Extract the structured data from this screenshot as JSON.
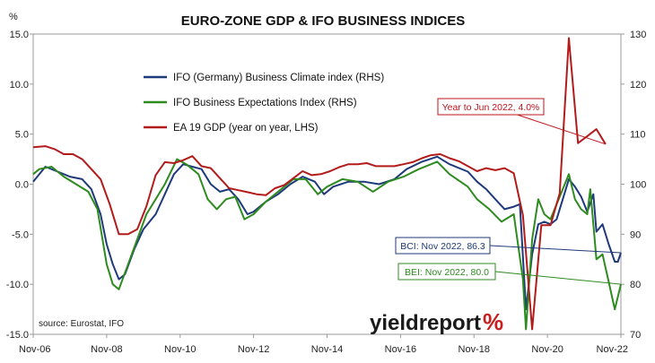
{
  "chart_data": {
    "type": "line",
    "title": "EURO-ZONE GDP & IFO BUSINESS INDICES",
    "source": "source: Eurostat, IFO",
    "brand": {
      "main": "yieldreport",
      "symbol": "%"
    },
    "x_labels": [
      "Nov-06",
      "Nov-08",
      "Nov-10",
      "Nov-12",
      "Nov-14",
      "Nov-16",
      "Nov-18",
      "Nov-20",
      "Nov-22"
    ],
    "xlim": [
      "2006-11",
      "2022-11"
    ],
    "y_left": {
      "label": "%",
      "ticks": [
        "15.0",
        "10.0",
        "5.0",
        "0.0",
        "-5.0",
        "-10.0",
        "-15.0"
      ],
      "range": [
        -15,
        15
      ]
    },
    "y_right": {
      "ticks": [
        "130",
        "120",
        "110",
        "100",
        "90",
        "80",
        "70"
      ],
      "range": [
        70,
        130
      ]
    },
    "grid": false,
    "legend_position": "top-left",
    "series": [
      {
        "name": "IFO (Germany) Business Climate index (RHS)",
        "axis": "right",
        "color": "#1f3a7a",
        "points": [
          [
            "2006-11",
            100.5
          ],
          [
            "2007-03",
            103.5
          ],
          [
            "2007-07",
            102.5
          ],
          [
            "2007-11",
            101.5
          ],
          [
            "2008-03",
            101
          ],
          [
            "2008-06",
            99
          ],
          [
            "2008-09",
            94
          ],
          [
            "2008-11",
            88
          ],
          [
            "2009-01",
            84
          ],
          [
            "2009-03",
            81
          ],
          [
            "2009-05",
            82
          ],
          [
            "2009-08",
            87
          ],
          [
            "2009-11",
            91
          ],
          [
            "2010-03",
            94
          ],
          [
            "2010-06",
            98
          ],
          [
            "2010-09",
            102
          ],
          [
            "2010-12",
            104
          ],
          [
            "2011-03",
            103.5
          ],
          [
            "2011-06",
            103
          ],
          [
            "2011-09",
            100
          ],
          [
            "2011-12",
            98.5
          ],
          [
            "2012-03",
            99
          ],
          [
            "2012-06",
            97
          ],
          [
            "2012-09",
            94
          ],
          [
            "2012-11",
            94.5
          ],
          [
            "2013-03",
            96.5
          ],
          [
            "2013-07",
            98
          ],
          [
            "2013-11",
            100
          ],
          [
            "2014-03",
            101.5
          ],
          [
            "2014-07",
            100.5
          ],
          [
            "2014-10",
            98
          ],
          [
            "2015-01",
            99.5
          ],
          [
            "2015-06",
            100.5
          ],
          [
            "2015-11",
            100.5
          ],
          [
            "2016-04",
            100
          ],
          [
            "2016-09",
            101
          ],
          [
            "2017-01",
            103
          ],
          [
            "2017-06",
            104.5
          ],
          [
            "2017-11",
            105.5
          ],
          [
            "2018-03",
            104
          ],
          [
            "2018-09",
            102.5
          ],
          [
            "2018-12",
            100.5
          ],
          [
            "2019-03",
            99
          ],
          [
            "2019-06",
            97
          ],
          [
            "2019-09",
            95
          ],
          [
            "2019-12",
            95.5
          ],
          [
            "2020-02",
            96
          ],
          [
            "2020-04",
            75
          ],
          [
            "2020-06",
            86
          ],
          [
            "2020-08",
            92
          ],
          [
            "2020-10",
            92.5
          ],
          [
            "2020-12",
            92
          ],
          [
            "2021-02",
            93
          ],
          [
            "2021-04",
            97
          ],
          [
            "2021-06",
            101
          ],
          [
            "2021-08",
            99.5
          ],
          [
            "2021-10",
            97.5
          ],
          [
            "2021-12",
            94.5
          ],
          [
            "2022-02",
            98
          ],
          [
            "2022-03",
            90.5
          ],
          [
            "2022-05",
            92
          ],
          [
            "2022-07",
            88
          ],
          [
            "2022-09",
            84.5
          ],
          [
            "2022-10",
            84.5
          ],
          [
            "2022-11",
            86.3
          ]
        ]
      },
      {
        "name": "IFO Business Expectations Index (RHS)",
        "axis": "right",
        "color": "#2e8b1f",
        "points": [
          [
            "2006-11",
            102
          ],
          [
            "2007-01",
            103
          ],
          [
            "2007-05",
            103.5
          ],
          [
            "2007-09",
            101.5
          ],
          [
            "2008-01",
            100
          ],
          [
            "2008-05",
            98.5
          ],
          [
            "2008-08",
            95
          ],
          [
            "2008-11",
            84
          ],
          [
            "2009-01",
            80
          ],
          [
            "2009-03",
            79
          ],
          [
            "2009-06",
            84
          ],
          [
            "2009-09",
            89
          ],
          [
            "2009-12",
            94
          ],
          [
            "2010-03",
            97
          ],
          [
            "2010-06",
            100
          ],
          [
            "2010-10",
            105
          ],
          [
            "2011-01",
            104
          ],
          [
            "2011-05",
            102
          ],
          [
            "2011-08",
            97
          ],
          [
            "2011-11",
            95
          ],
          [
            "2012-02",
            97
          ],
          [
            "2012-05",
            97.5
          ],
          [
            "2012-08",
            93
          ],
          [
            "2012-11",
            94
          ],
          [
            "2013-03",
            96.5
          ],
          [
            "2013-07",
            98.5
          ],
          [
            "2013-12",
            101
          ],
          [
            "2014-04",
            101
          ],
          [
            "2014-08",
            98
          ],
          [
            "2014-11",
            99.5
          ],
          [
            "2015-04",
            101
          ],
          [
            "2015-09",
            100.5
          ],
          [
            "2016-02",
            98.5
          ],
          [
            "2016-07",
            100.5
          ],
          [
            "2016-12",
            101.5
          ],
          [
            "2017-05",
            103
          ],
          [
            "2017-11",
            104.5
          ],
          [
            "2018-03",
            102
          ],
          [
            "2018-09",
            99.5
          ],
          [
            "2018-12",
            97
          ],
          [
            "2019-04",
            95
          ],
          [
            "2019-08",
            92.5
          ],
          [
            "2019-12",
            94
          ],
          [
            "2020-03",
            81
          ],
          [
            "2020-04",
            71
          ],
          [
            "2020-06",
            89
          ],
          [
            "2020-08",
            97
          ],
          [
            "2020-10",
            94
          ],
          [
            "2020-12",
            93
          ],
          [
            "2021-02",
            96
          ],
          [
            "2021-04",
            99
          ],
          [
            "2021-06",
            102
          ],
          [
            "2021-08",
            97
          ],
          [
            "2021-10",
            95
          ],
          [
            "2021-12",
            94
          ],
          [
            "2022-01",
            99
          ],
          [
            "2022-03",
            85
          ],
          [
            "2022-05",
            86
          ],
          [
            "2022-07",
            80.5
          ],
          [
            "2022-09",
            75
          ],
          [
            "2022-11",
            80.0
          ]
        ]
      },
      {
        "name": "EA 19 GDP (year on year, LHS)",
        "axis": "left",
        "color": "#b31b1b",
        "points": [
          [
            "2006-11",
            3.7
          ],
          [
            "2007-03",
            3.8
          ],
          [
            "2007-06",
            3.5
          ],
          [
            "2007-09",
            3.0
          ],
          [
            "2007-12",
            3.0
          ],
          [
            "2008-03",
            2.5
          ],
          [
            "2008-06",
            1.5
          ],
          [
            "2008-09",
            0.5
          ],
          [
            "2008-12",
            -2.0
          ],
          [
            "2009-03",
            -5.0
          ],
          [
            "2009-06",
            -5.0
          ],
          [
            "2009-09",
            -4.5
          ],
          [
            "2009-12",
            -2.2
          ],
          [
            "2010-03",
            0.9
          ],
          [
            "2010-06",
            2.2
          ],
          [
            "2010-09",
            2.1
          ],
          [
            "2010-12",
            2.4
          ],
          [
            "2011-03",
            2.8
          ],
          [
            "2011-06",
            1.8
          ],
          [
            "2011-09",
            1.6
          ],
          [
            "2011-12",
            0.6
          ],
          [
            "2012-03",
            -0.4
          ],
          [
            "2012-06",
            -0.6
          ],
          [
            "2012-09",
            -0.8
          ],
          [
            "2012-12",
            -1.0
          ],
          [
            "2013-03",
            -1.1
          ],
          [
            "2013-06",
            -0.4
          ],
          [
            "2013-09",
            -0.1
          ],
          [
            "2013-12",
            0.6
          ],
          [
            "2014-03",
            1.3
          ],
          [
            "2014-06",
            0.9
          ],
          [
            "2014-09",
            1.0
          ],
          [
            "2014-12",
            1.3
          ],
          [
            "2015-03",
            1.7
          ],
          [
            "2015-06",
            2.0
          ],
          [
            "2015-09",
            2.0
          ],
          [
            "2015-12",
            2.1
          ],
          [
            "2016-03",
            1.8
          ],
          [
            "2016-06",
            1.8
          ],
          [
            "2016-09",
            1.8
          ],
          [
            "2016-12",
            2.0
          ],
          [
            "2017-03",
            2.2
          ],
          [
            "2017-06",
            2.6
          ],
          [
            "2017-09",
            2.9
          ],
          [
            "2017-12",
            3.0
          ],
          [
            "2018-03",
            2.6
          ],
          [
            "2018-06",
            2.3
          ],
          [
            "2018-09",
            1.8
          ],
          [
            "2018-12",
            1.3
          ],
          [
            "2019-03",
            1.6
          ],
          [
            "2019-06",
            1.4
          ],
          [
            "2019-09",
            1.6
          ],
          [
            "2019-12",
            1.1
          ],
          [
            "2020-03",
            -3.1
          ],
          [
            "2020-06",
            -14.5
          ],
          [
            "2020-09",
            -4.1
          ],
          [
            "2020-12",
            -4.1
          ],
          [
            "2021-03",
            -0.9
          ],
          [
            "2021-06",
            14.6
          ],
          [
            "2021-09",
            4.1
          ],
          [
            "2021-12",
            4.8
          ],
          [
            "2022-03",
            5.5
          ],
          [
            "2022-06",
            4.0
          ]
        ]
      }
    ],
    "annotations": [
      {
        "text": "Year to Jun 2022, 4.0%",
        "color": "#c0141b",
        "series": 2
      },
      {
        "text": "BCI: Nov 2022, 86.3",
        "color": "#1f3a7a",
        "series": 0
      },
      {
        "text": "BEI: Nov 2022, 80.0",
        "color": "#2e8b1f",
        "series": 1
      }
    ]
  }
}
